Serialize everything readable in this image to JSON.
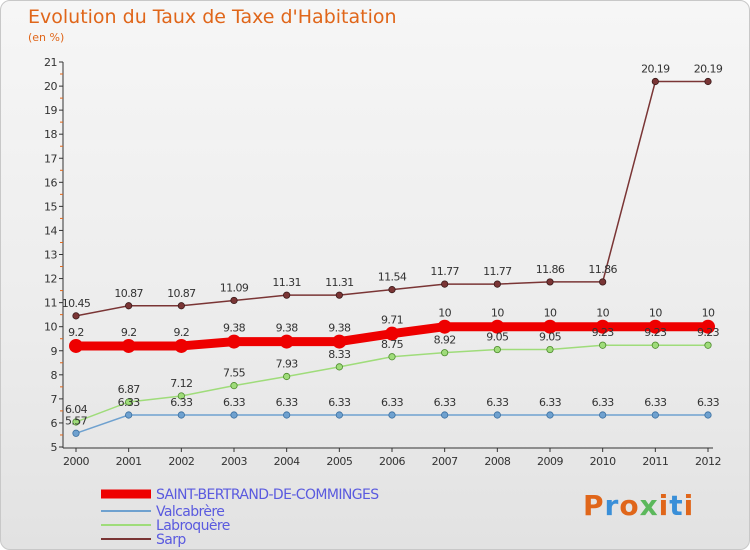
{
  "header": {
    "title": "Evolution du Taux de Taxe d'Habitation",
    "subtitle": "(en %)"
  },
  "logo": {
    "text": "Proxiti",
    "colors": [
      "#e0661a",
      "#3a8fd8",
      "#e0661a",
      "#5cb85c",
      "#e0661a",
      "#3a8fd8",
      "#e0661a"
    ]
  },
  "colors": {
    "title": "#e0661a",
    "axis": "#333333",
    "legend_text": "#5a5adf"
  },
  "chart_data": {
    "type": "line",
    "title": "Evolution du Taux de Taxe d'Habitation",
    "subtitle": "(en %)",
    "x": [
      "2000",
      "2001",
      "2002",
      "2003",
      "2004",
      "2005",
      "2006",
      "2007",
      "2008",
      "2009",
      "2010",
      "2011",
      "2012"
    ],
    "ylim": [
      5,
      21
    ],
    "yticks": [
      "5",
      "6",
      "7",
      "8",
      "9",
      "10",
      "11",
      "12",
      "13",
      "14",
      "15",
      "16",
      "17",
      "18",
      "19",
      "20",
      "21"
    ],
    "grid": false,
    "legend_position": "bottom-left",
    "series": [
      {
        "name": "SAINT-BERTRAND-DE-COMMINGES",
        "color": "#ee0000",
        "values": [
          9.2,
          9.2,
          9.2,
          9.38,
          9.38,
          9.38,
          9.71,
          10,
          10,
          10,
          10,
          10,
          10
        ],
        "labels": [
          "9.2",
          "9.2",
          "9.2",
          "9.38",
          "9.38",
          "9.38",
          "9.71",
          "10",
          "10",
          "10",
          "10",
          "10",
          "10"
        ]
      },
      {
        "name": "Valcabrère",
        "color": "#6fa1cf",
        "values": [
          5.57,
          6.33,
          6.33,
          6.33,
          6.33,
          6.33,
          6.33,
          6.33,
          6.33,
          6.33,
          6.33,
          6.33,
          6.33
        ],
        "labels": [
          "5.57",
          "6.33",
          "6.33",
          "6.33",
          "6.33",
          "6.33",
          "6.33",
          "6.33",
          "6.33",
          "6.33",
          "6.33",
          "6.33",
          "6.33"
        ]
      },
      {
        "name": "Labroquère",
        "color": "#9fdc7a",
        "values": [
          6.04,
          6.87,
          7.12,
          7.55,
          7.93,
          8.33,
          8.75,
          8.92,
          9.05,
          9.05,
          9.23,
          9.23,
          9.23
        ],
        "labels": [
          "6.04",
          "6.87",
          "7.12",
          "7.55",
          "7.93",
          "8.33",
          "8.75",
          "8.92",
          "9.05",
          "9.05",
          "9.23",
          "9.23",
          "9.23"
        ]
      },
      {
        "name": "Sarp",
        "color": "#7a3535",
        "values": [
          10.45,
          10.87,
          10.87,
          11.09,
          11.31,
          11.31,
          11.54,
          11.77,
          11.77,
          11.86,
          11.86,
          20.19,
          20.19
        ],
        "labels": [
          "10.45",
          "10.87",
          "10.87",
          "11.09",
          "11.31",
          "11.31",
          "11.54",
          "11.77",
          "11.77",
          "11.86",
          "11.86",
          "20.19",
          "20.19"
        ]
      }
    ]
  }
}
